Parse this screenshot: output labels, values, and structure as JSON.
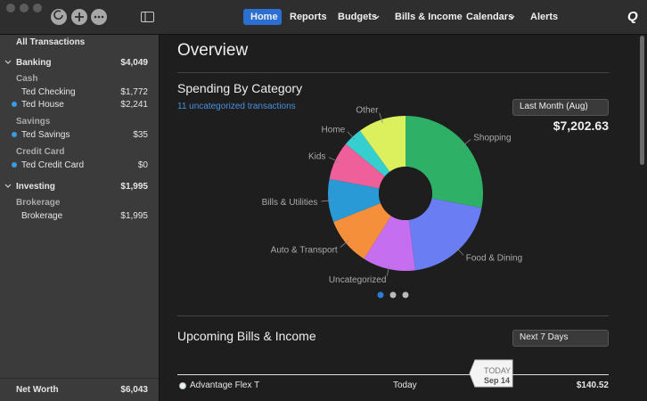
{
  "toolbar": {
    "tabs": [
      "Home",
      "Reports",
      "Budgets",
      "Bills & Income",
      "Calendars",
      "Alerts"
    ],
    "logo": "Q"
  },
  "sidebar": {
    "all_transactions": "All Transactions",
    "banking": {
      "name": "Banking",
      "total": "$4,049",
      "cash": {
        "name": "Cash",
        "accounts": [
          {
            "name": "Ted Checking",
            "balance": "$1,772"
          },
          {
            "name": "Ted House",
            "balance": "$2,241"
          }
        ]
      },
      "savings": {
        "name": "Savings",
        "accounts": [
          {
            "name": "Ted Savings",
            "balance": "$35"
          }
        ]
      },
      "credit_card": {
        "name": "Credit Card",
        "accounts": [
          {
            "name": "Ted Credit Card",
            "balance": "$0"
          }
        ]
      }
    },
    "investing": {
      "name": "Investing",
      "total": "$1,995",
      "brokerage": {
        "name": "Brokerage",
        "accounts": [
          {
            "name": "Brokerage",
            "balance": "$1,995"
          }
        ]
      }
    },
    "net_worth": {
      "label": "Net Worth",
      "value": "$6,043"
    }
  },
  "main": {
    "title": "Overview",
    "spending": {
      "title": "Spending By Category",
      "link": "11 uncategorized transactions",
      "period": "Last Month (Aug)",
      "total": "$7,202.63",
      "chart_data": {
        "type": "pie",
        "categories": [
          "Shopping",
          "Food & Dining",
          "Uncategorized",
          "Auto & Transport",
          "Bills & Utilities",
          "Kids",
          "Home",
          "Other"
        ],
        "values": [
          28,
          20,
          11,
          10,
          9,
          8,
          4,
          10
        ],
        "colors": [
          "#2eb167",
          "#6b7df3",
          "#c56ff0",
          "#f58f3b",
          "#2a9ad6",
          "#ef5f99",
          "#36cfcf",
          "#dcef5c"
        ]
      }
    },
    "upcoming": {
      "title": "Upcoming Bills & Income",
      "period": "Next 7 Days",
      "marker": {
        "label": "TODAY",
        "date": "Sep 14"
      },
      "rows": [
        {
          "name": "Advantage Flex T",
          "date": "Today",
          "amount": "$140.52"
        }
      ]
    }
  }
}
